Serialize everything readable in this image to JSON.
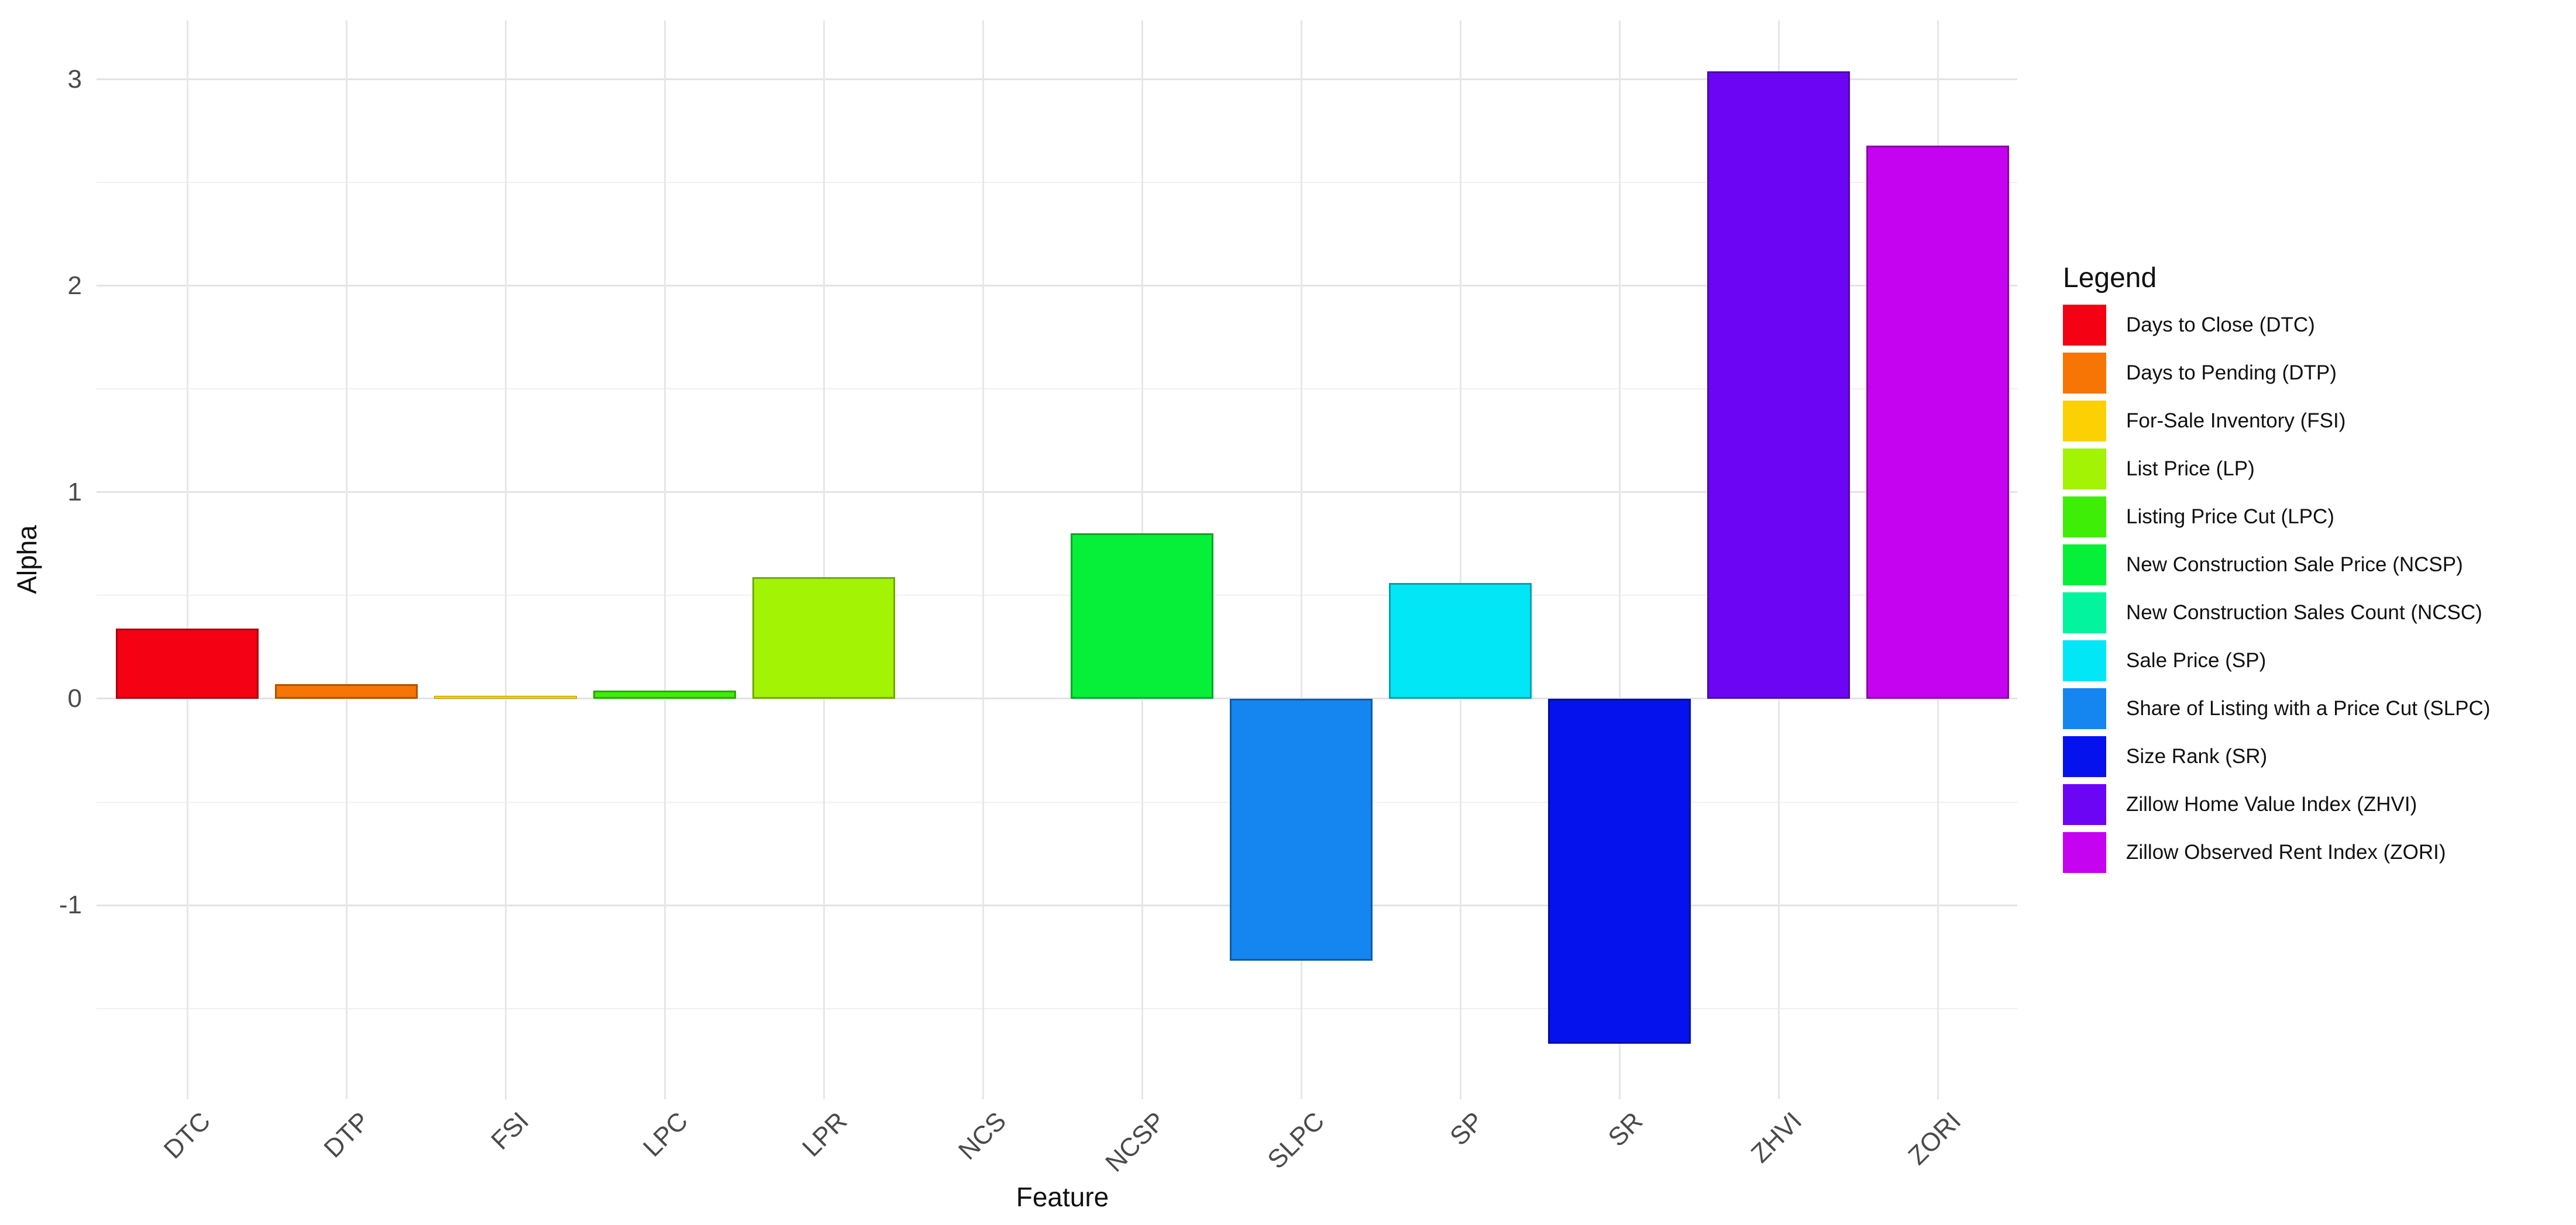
{
  "chart_data": {
    "type": "bar",
    "title": "",
    "xlabel": "Feature",
    "ylabel": "Alpha",
    "categories": [
      "DTC",
      "DTP",
      "FSI",
      "LPC",
      "LPR",
      "NCS",
      "NCSP",
      "SLPC",
      "SP",
      "SR",
      "ZHVI",
      "ZORI"
    ],
    "values": [
      0.34,
      0.07,
      0.015,
      0.04,
      0.59,
      0,
      0.8,
      -1.27,
      0.56,
      -1.67,
      3.04,
      2.68
    ],
    "bar_colors": [
      "#f40113",
      "#f67504",
      "#fbd103",
      "#3fee06",
      "#a2f304",
      "#03f49e",
      "#06f03a",
      "#1585ef",
      "#02e7f6",
      "#0512ee",
      "#6d05f5",
      "#c603f0"
    ],
    "ylim": [
      -1.94,
      3.285
    ],
    "ytick_values": [
      3,
      2,
      1,
      0,
      -1
    ],
    "ytick_labels": [
      "3",
      "2",
      "1",
      "0",
      "-1"
    ],
    "yminor_values": [
      2.5,
      1.5,
      0.5,
      -0.5,
      -1.5
    ],
    "grid": "major and minor horizontal gridlines, one vertical gridline per category, light gray on white",
    "legend_position": "right",
    "bar_width_fraction": 0.9
  },
  "legend": {
    "title": "Legend",
    "entries": [
      {
        "label": "Days to Close (DTC)",
        "color": "#f40113"
      },
      {
        "label": "Days to Pending (DTP)",
        "color": "#f67504"
      },
      {
        "label": "For-Sale Inventory (FSI)",
        "color": "#fbd103"
      },
      {
        "label": "List Price (LP)",
        "color": "#a2f304"
      },
      {
        "label": "Listing Price Cut (LPC)",
        "color": "#3fee06"
      },
      {
        "label": "New Construction Sale Price (NCSP)",
        "color": "#06f03a"
      },
      {
        "label": "New Construction Sales Count (NCSC)",
        "color": "#03f49e"
      },
      {
        "label": "Sale Price (SP)",
        "color": "#02e7f6"
      },
      {
        "label": "Share of Listing with a Price Cut (SLPC)",
        "color": "#1585ef"
      },
      {
        "label": "Size Rank (SR)",
        "color": "#0512ee"
      },
      {
        "label": "Zillow Home Value Index (ZHVI)",
        "color": "#6d05f5"
      },
      {
        "label": "Zillow Observed Rent Index (ZORI)",
        "color": "#c603f0"
      }
    ]
  },
  "colors": {
    "background": "#ffffff",
    "grid_major": "#e3e3e3",
    "grid_minor": "#f0f0f0",
    "grid_vertical": "#e7e7e7",
    "tick_text": "#4a4a4a",
    "title_text": "#111111"
  }
}
